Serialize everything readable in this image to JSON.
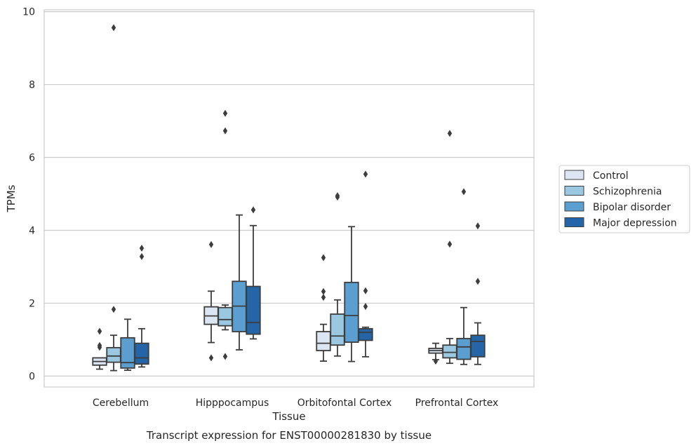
{
  "chart_data": {
    "type": "boxplot",
    "title": "",
    "xlabel": "Tissue",
    "ylabel": "TPMs",
    "caption": "Transcript expression for ENST00000281830 by tissue",
    "ylim": [
      -0.3,
      10.05
    ],
    "yticks": [
      0,
      2,
      4,
      6,
      8,
      10
    ],
    "grid": true,
    "legend_position": "right",
    "categories": [
      "Cerebellum",
      "Hipppocampus",
      "Orbitofontal Cortex",
      "Prefrontal Cortex"
    ],
    "series": [
      {
        "name": "Control",
        "color": "#dbe6f2",
        "boxes": [
          {
            "whislo": 0.19,
            "q1": 0.3,
            "med": 0.4,
            "q3": 0.5,
            "whishi": 0.5,
            "fliers": [
              1.23,
              0.84,
              0.79
            ]
          },
          {
            "whislo": 0.92,
            "q1": 1.42,
            "med": 1.65,
            "q3": 1.9,
            "whishi": 2.33,
            "fliers": [
              3.61,
              0.5
            ]
          },
          {
            "whislo": 0.41,
            "q1": 0.7,
            "med": 0.9,
            "q3": 1.22,
            "whishi": 1.42,
            "fliers": [
              3.25,
              2.32,
              2.16
            ]
          },
          {
            "whislo": 0.45,
            "q1": 0.63,
            "med": 0.7,
            "q3": 0.76,
            "whishi": 0.9,
            "fliers": [
              0.41
            ]
          }
        ]
      },
      {
        "name": "Schizophrenia",
        "color": "#9ac8e0",
        "boxes": [
          {
            "whislo": 0.15,
            "q1": 0.38,
            "med": 0.55,
            "q3": 0.78,
            "whishi": 1.12,
            "fliers": [
              1.83,
              9.56
            ]
          },
          {
            "whislo": 1.27,
            "q1": 1.38,
            "med": 1.55,
            "q3": 1.88,
            "whishi": 1.95,
            "fliers": [
              7.21,
              6.73,
              0.54
            ]
          },
          {
            "whislo": 0.55,
            "q1": 0.85,
            "med": 1.1,
            "q3": 1.7,
            "whishi": 2.09,
            "fliers": [
              4.95,
              4.91
            ]
          },
          {
            "whislo": 0.35,
            "q1": 0.5,
            "med": 0.65,
            "q3": 0.85,
            "whishi": 1.03,
            "fliers": [
              3.62,
              6.66
            ]
          }
        ]
      },
      {
        "name": "Bipolar disorder",
        "color": "#5a9fcf",
        "boxes": [
          {
            "whislo": 0.16,
            "q1": 0.22,
            "med": 0.37,
            "q3": 1.05,
            "whishi": 1.56,
            "fliers": []
          },
          {
            "whislo": 0.72,
            "q1": 1.22,
            "med": 1.92,
            "q3": 2.6,
            "whishi": 4.42,
            "fliers": []
          },
          {
            "whislo": 0.4,
            "q1": 0.93,
            "med": 1.66,
            "q3": 2.57,
            "whishi": 4.1,
            "fliers": []
          },
          {
            "whislo": 0.32,
            "q1": 0.46,
            "med": 0.8,
            "q3": 1.03,
            "whishi": 1.88,
            "fliers": [
              5.06
            ]
          }
        ]
      },
      {
        "name": "Major depression",
        "color": "#2365a7",
        "boxes": [
          {
            "whislo": 0.25,
            "q1": 0.33,
            "med": 0.5,
            "q3": 0.9,
            "whishi": 1.3,
            "fliers": [
              3.51,
              3.28
            ]
          },
          {
            "whislo": 1.02,
            "q1": 1.15,
            "med": 1.47,
            "q3": 2.46,
            "whishi": 4.13,
            "fliers": [
              4.56
            ]
          },
          {
            "whislo": 0.53,
            "q1": 0.98,
            "med": 1.2,
            "q3": 1.3,
            "whishi": 1.34,
            "fliers": [
              5.54,
              2.34,
              1.91
            ]
          },
          {
            "whislo": 0.32,
            "q1": 0.53,
            "med": 0.95,
            "q3": 1.12,
            "whishi": 1.46,
            "fliers": [
              4.12,
              2.6
            ]
          }
        ]
      }
    ]
  }
}
